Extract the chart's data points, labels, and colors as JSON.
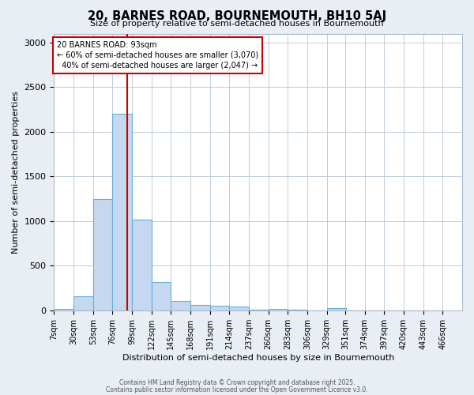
{
  "title": "20, BARNES ROAD, BOURNEMOUTH, BH10 5AJ",
  "subtitle": "Size of property relative to semi-detached houses in Bournemouth",
  "xlabel": "Distribution of semi-detached houses by size in Bournemouth",
  "ylabel": "Number of semi-detached properties",
  "footer1": "Contains HM Land Registry data © Crown copyright and database right 2025.",
  "footer2": "Contains public sector information licensed under the Open Government Licence v3.0.",
  "bin_labels": [
    "7sqm",
    "30sqm",
    "53sqm",
    "76sqm",
    "99sqm",
    "122sqm",
    "145sqm",
    "168sqm",
    "191sqm",
    "214sqm",
    "237sqm",
    "260sqm",
    "283sqm",
    "306sqm",
    "329sqm",
    "351sqm",
    "374sqm",
    "397sqm",
    "420sqm",
    "443sqm",
    "466sqm"
  ],
  "bin_edges": [
    7,
    30,
    53,
    76,
    99,
    122,
    145,
    168,
    191,
    214,
    237,
    260,
    283,
    306,
    329,
    351,
    374,
    397,
    420,
    443,
    466
  ],
  "counts": [
    20,
    160,
    1250,
    2200,
    1020,
    320,
    105,
    60,
    50,
    40,
    10,
    15,
    5,
    0,
    25,
    0,
    0,
    0,
    0,
    0
  ],
  "bar_color": "#c5d8ef",
  "bar_edge_color": "#6aafd6",
  "property_size": 93,
  "property_label": "20 BARNES ROAD: 93sqm",
  "pct_smaller": 60,
  "count_smaller": 3070,
  "pct_larger": 40,
  "count_larger": 2047,
  "vline_color": "#cc0000",
  "annotation_border_color": "#cc0000",
  "ylim": [
    0,
    3100
  ],
  "yticks": [
    0,
    500,
    1000,
    1500,
    2000,
    2500,
    3000
  ],
  "background_color": "#e8eef4",
  "plot_background": "#ffffff",
  "grid_color": "#c0cdd8"
}
